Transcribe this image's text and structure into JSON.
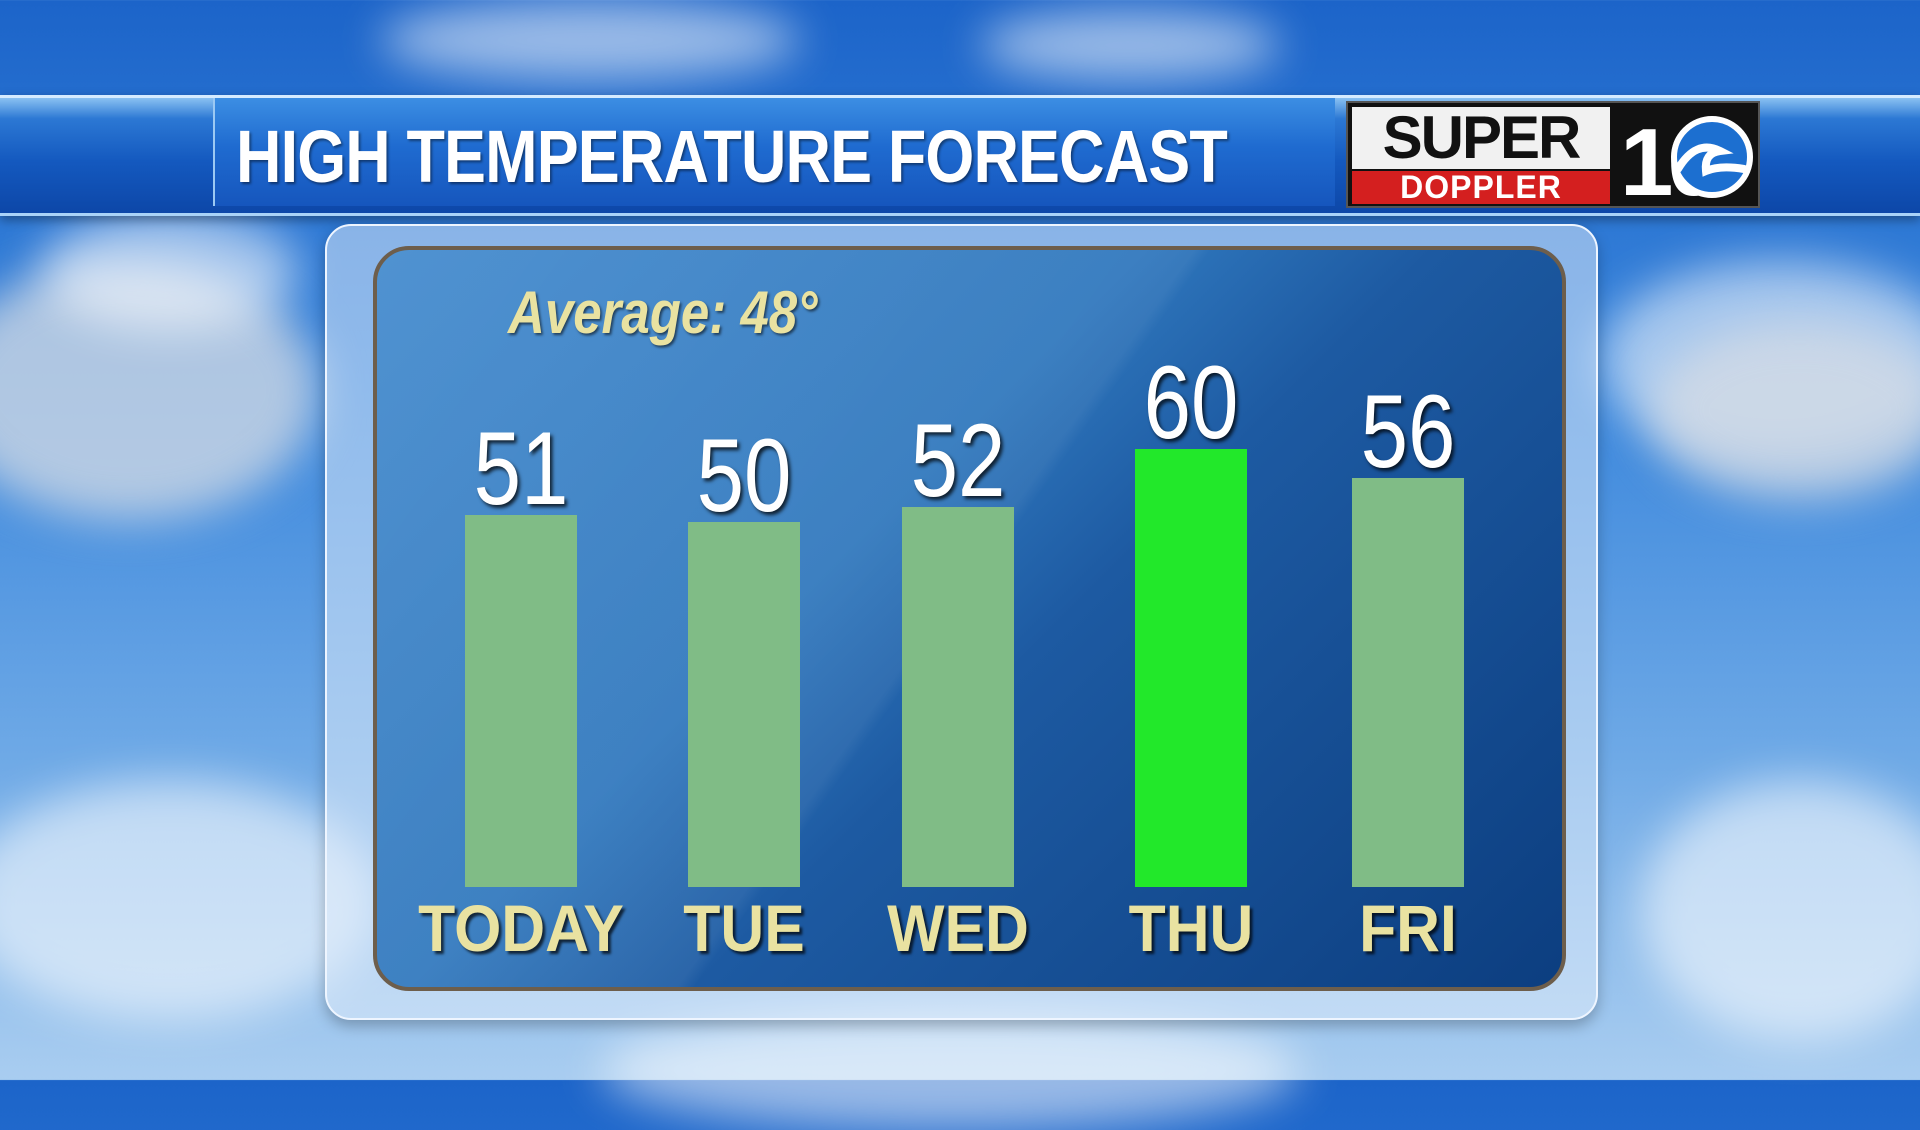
{
  "header": {
    "title": "HIGH TEMPERATURE FORECAST",
    "logo_text": "SUPER",
    "logo_subtext": "DOPPLER",
    "logo_channel": "10"
  },
  "chart_data": {
    "type": "bar",
    "title": "HIGH TEMPERATURE FORECAST",
    "annotation": "Average: 48°",
    "categories": [
      "TODAY",
      "TUE",
      "WED",
      "THU",
      "FRI"
    ],
    "values": [
      51,
      50,
      52,
      60,
      56
    ],
    "value_labels": [
      "51",
      "50",
      "52",
      "60",
      "56"
    ],
    "ylim": [
      0,
      60
    ],
    "colors": {
      "bar": "#80bc86",
      "highlight_bar": "#22e82a",
      "label": "#e9e2a1"
    },
    "highlighted": "THU",
    "grid": false,
    "legend": "none"
  }
}
